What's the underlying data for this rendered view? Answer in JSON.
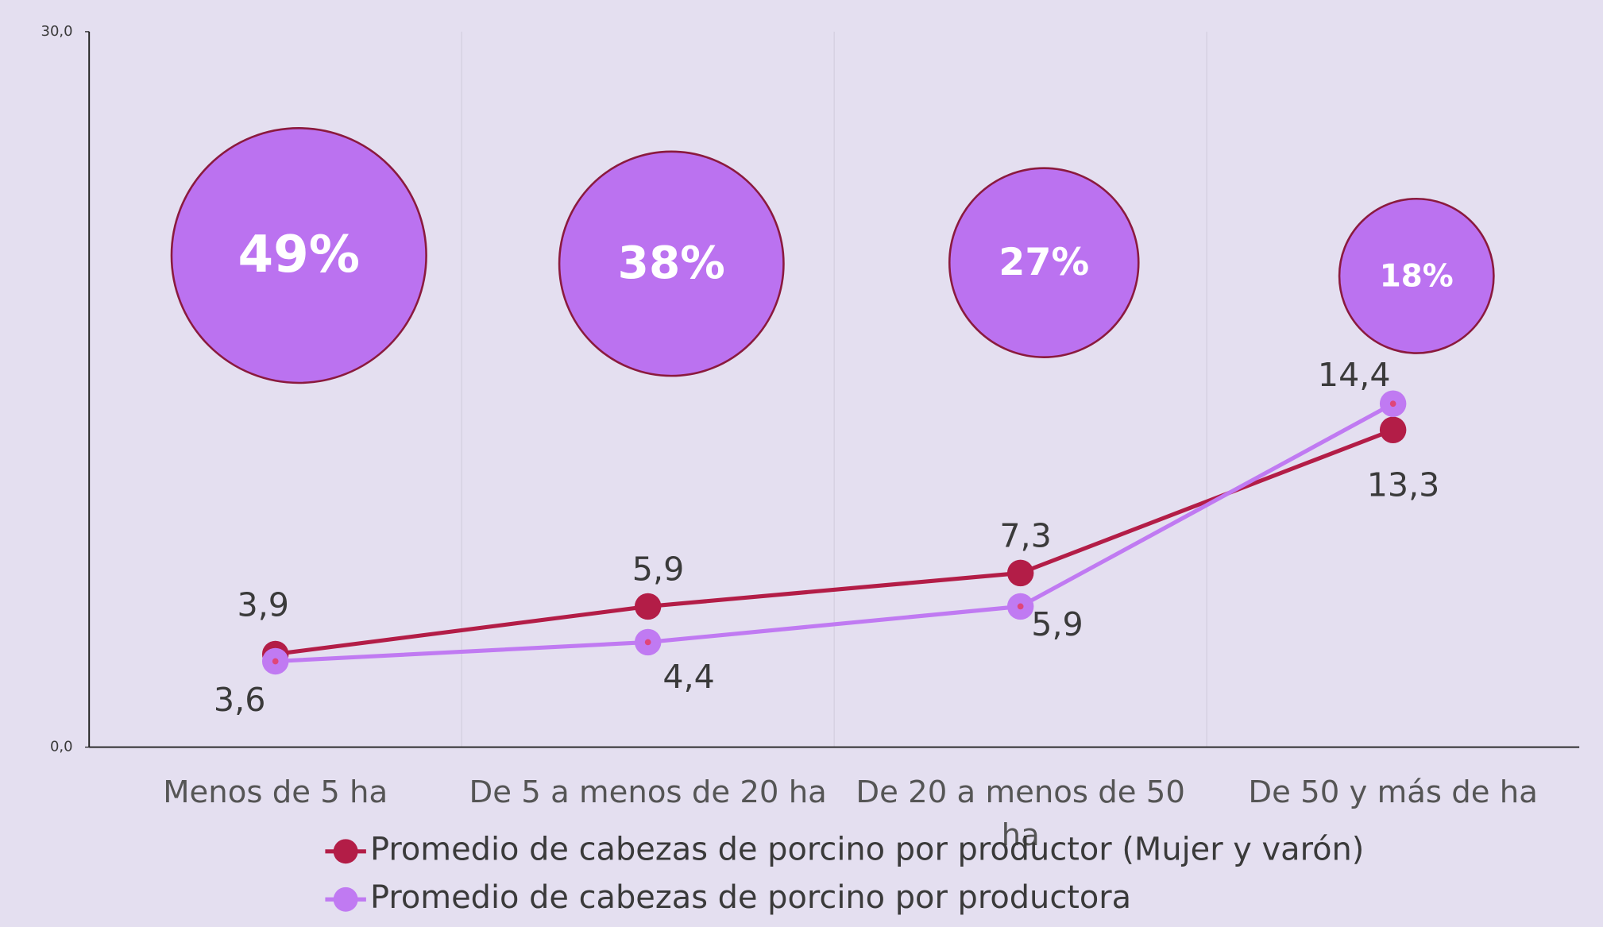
{
  "chart_data": {
    "type": "line",
    "categories": [
      "Menos de 5 ha",
      "De 5 a menos de 20 ha",
      "De 20 a menos de 50 ha",
      "De 50 y más de ha"
    ],
    "series": [
      {
        "name": "Promedio de cabezas de porcino por productor (Mujer y varón)",
        "color": "#b31d47",
        "values": [
          3.9,
          5.9,
          7.3,
          13.3
        ],
        "value_labels": [
          "3,9",
          "5,9",
          "7,3",
          "13,3"
        ]
      },
      {
        "name": "Promedio de cabezas de porcino por productora",
        "color": "#c07af2",
        "values": [
          3.6,
          4.4,
          5.9,
          14.4
        ],
        "value_labels": [
          "3,6",
          "4,4",
          "5,9",
          "14,4"
        ]
      }
    ],
    "bubbles": {
      "color": "#bb72f0",
      "values": [
        49,
        38,
        27,
        18
      ],
      "value_labels": [
        "49%",
        "38%",
        "27%",
        "18%"
      ]
    },
    "ylim": [
      0,
      30
    ],
    "yticks": [
      {
        "value": 0,
        "label": "0,0"
      },
      {
        "value": 30,
        "label": "30,0"
      }
    ],
    "grid": true,
    "legend": "bottom"
  }
}
